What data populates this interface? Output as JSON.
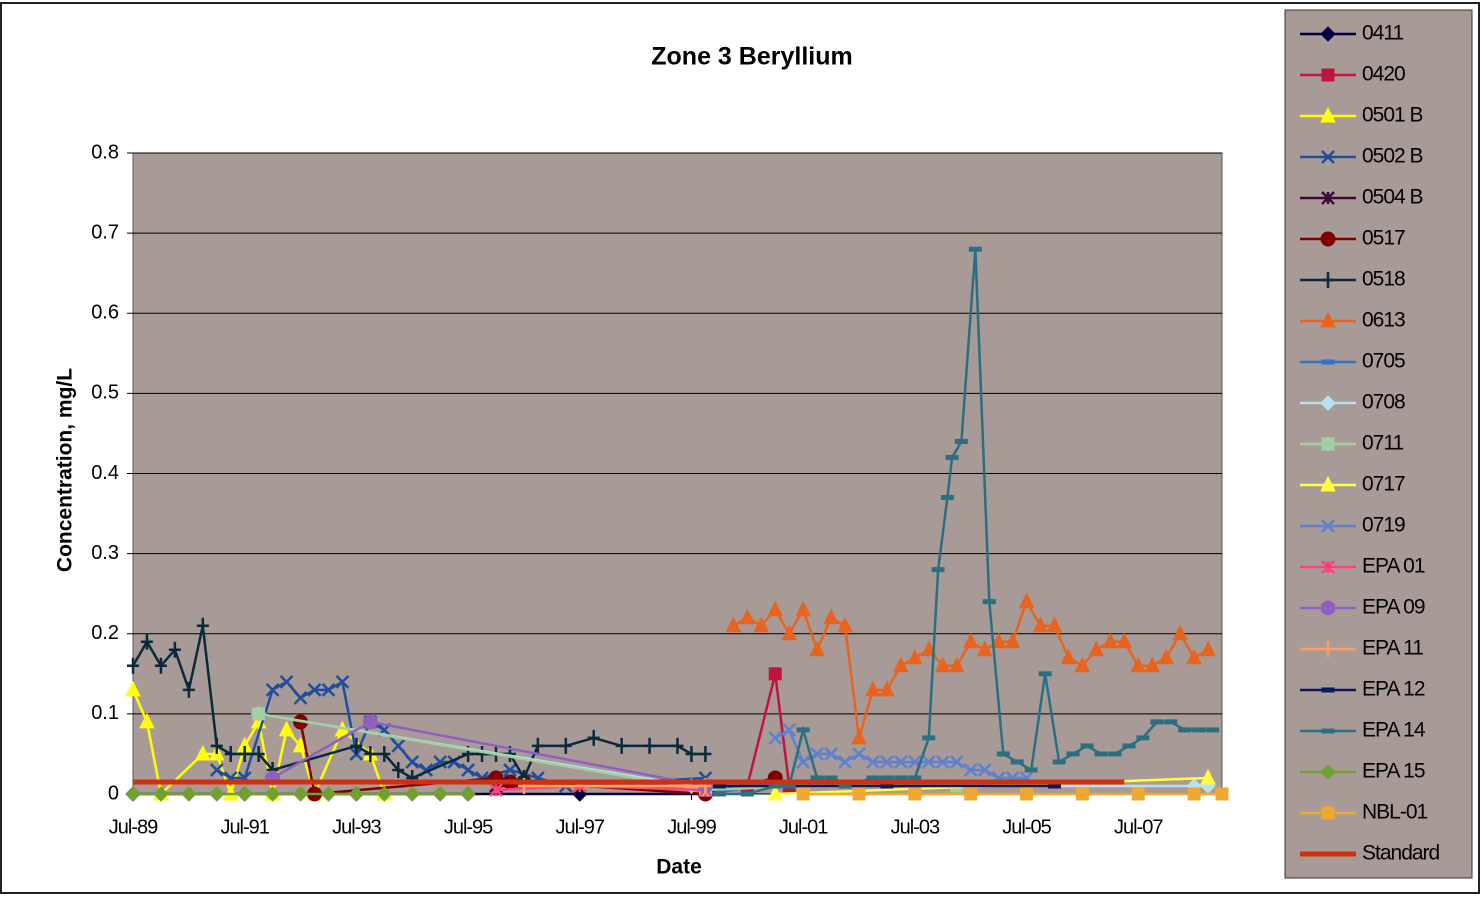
{
  "chart_data": {
    "type": "line",
    "title": "Zone 3 Beryllium",
    "x_label": "Date",
    "y_label": "Concentration, mg/L",
    "xlim": [
      "1989-07",
      "2009-01"
    ],
    "xticks": [
      {
        "value": "1989-07",
        "label": "Jul-89"
      },
      {
        "value": "1991-07",
        "label": "Jul-91"
      },
      {
        "value": "1993-07",
        "label": "Jul-93"
      },
      {
        "value": "1995-07",
        "label": "Jul-95"
      },
      {
        "value": "1997-07",
        "label": "Jul-97"
      },
      {
        "value": "1999-07",
        "label": "Jul-99"
      },
      {
        "value": "2001-07",
        "label": "Jul-01"
      },
      {
        "value": "2003-07",
        "label": "Jul-03"
      },
      {
        "value": "2005-07",
        "label": "Jul-05"
      },
      {
        "value": "2007-07",
        "label": "Jul-07"
      }
    ],
    "ylim": [
      0,
      0.8
    ],
    "yticks": [
      0,
      0.1,
      0.2,
      0.3,
      0.4,
      0.5,
      0.6,
      0.7,
      0.8
    ],
    "grid": true,
    "series": [
      {
        "name": "0411",
        "color": "#000040",
        "marker": "diamond",
        "x": [
          "1989-07",
          "1991-07",
          "1993-07",
          "1995-07",
          "1997-07",
          "1999-10"
        ],
        "values": [
          0,
          0,
          0,
          0,
          0,
          0
        ]
      },
      {
        "name": "0420",
        "color": "#c0143c",
        "marker": "square",
        "x": [
          "2000-07",
          "2001-01",
          "2001-04"
        ],
        "values": [
          0.01,
          0.15,
          0.01
        ]
      },
      {
        "name": "0501 B",
        "color": "#ffff00",
        "marker": "triangle",
        "x": [
          "1989-07",
          "1989-10",
          "1990-01",
          "1990-10",
          "1991-01",
          "1991-04",
          "1991-07",
          "1991-10",
          "1992-01",
          "1992-04",
          "1992-07",
          "1992-10",
          "1993-04",
          "1993-10",
          "1994-01"
        ],
        "values": [
          0.13,
          0.09,
          0,
          0.05,
          0.05,
          0,
          0.06,
          0.09,
          0,
          0.08,
          0.06,
          0,
          0.08,
          0.05,
          0
        ]
      },
      {
        "name": "0502 B",
        "color": "#1f4e9c",
        "marker": "x",
        "x": [
          "1991-01",
          "1991-04",
          "1991-07",
          "1992-01",
          "1992-04",
          "1992-07",
          "1992-10",
          "1993-01",
          "1993-04",
          "1993-07",
          "1993-10",
          "1994-01",
          "1994-04",
          "1994-07",
          "1994-10",
          "1995-01",
          "1995-04",
          "1995-07",
          "1995-10",
          "1996-04",
          "1996-10",
          "1997-04",
          "1999-10"
        ],
        "values": [
          0.03,
          0.02,
          0.02,
          0.13,
          0.14,
          0.12,
          0.13,
          0.13,
          0.14,
          0.05,
          0.09,
          0.08,
          0.06,
          0.04,
          0.03,
          0.04,
          0.04,
          0.03,
          0.02,
          0.03,
          0.02,
          0.01,
          0.02
        ]
      },
      {
        "name": "0504 B",
        "color": "#3a0a3a",
        "marker": "star",
        "x": [
          "1996-01",
          "1997-07",
          "1999-10"
        ],
        "values": [
          0.01,
          0.01,
          0.01
        ]
      },
      {
        "name": "0517",
        "color": "#800000",
        "marker": "circle",
        "x": [
          "1992-07",
          "1992-10",
          "1996-01",
          "1996-04",
          "1996-07",
          "1999-10",
          "2001-01"
        ],
        "values": [
          0.09,
          0,
          0.02,
          0.015,
          0.015,
          0,
          0.02
        ]
      },
      {
        "name": "0518",
        "color": "#0a2a3a",
        "marker": "plus",
        "x": [
          "1989-07",
          "1989-10",
          "1990-01",
          "1990-04",
          "1990-07",
          "1990-10",
          "1991-01",
          "1991-04",
          "1991-07",
          "1991-10",
          "1992-01",
          "1993-07",
          "1993-10",
          "1994-01",
          "1994-04",
          "1994-07",
          "1995-07",
          "1995-10",
          "1996-01",
          "1996-04",
          "1996-07",
          "1996-10",
          "1997-04",
          "1997-10",
          "1998-04",
          "1998-10",
          "1999-04",
          "1999-07",
          "1999-10"
        ],
        "values": [
          0.16,
          0.19,
          0.16,
          0.18,
          0.13,
          0.21,
          0.06,
          0.05,
          0.05,
          0.05,
          0.03,
          0.06,
          0.05,
          0.05,
          0.03,
          0.02,
          0.05,
          0.05,
          0.05,
          0.05,
          0.02,
          0.06,
          0.06,
          0.07,
          0.06,
          0.06,
          0.06,
          0.05,
          0.05
        ]
      },
      {
        "name": "0613",
        "color": "#e8641e",
        "marker": "triangle",
        "x": [
          "2000-04",
          "2000-07",
          "2000-10",
          "2001-01",
          "2001-04",
          "2001-07",
          "2001-10",
          "2002-01",
          "2002-04",
          "2002-07",
          "2002-10",
          "2003-01",
          "2003-04",
          "2003-07",
          "2003-10",
          "2004-01",
          "2004-04",
          "2004-07",
          "2004-10",
          "2005-01",
          "2005-04",
          "2005-07",
          "2005-10",
          "2006-01",
          "2006-04",
          "2006-07",
          "2006-10",
          "2007-01",
          "2007-04",
          "2007-07",
          "2007-10",
          "2008-01",
          "2008-04",
          "2008-07",
          "2008-10"
        ],
        "values": [
          0.21,
          0.22,
          0.21,
          0.23,
          0.2,
          0.23,
          0.18,
          0.22,
          0.21,
          0.07,
          0.13,
          0.13,
          0.16,
          0.17,
          0.18,
          0.16,
          0.16,
          0.19,
          0.18,
          0.19,
          0.19,
          0.24,
          0.21,
          0.21,
          0.17,
          0.16,
          0.18,
          0.19,
          0.19,
          0.16,
          0.16,
          0.17,
          0.2,
          0.17,
          0.18
        ]
      },
      {
        "name": "0705",
        "color": "#2e74c8",
        "marker": "dash",
        "x": [
          "1999-10",
          "2000-10",
          "2001-04"
        ],
        "values": [
          0,
          0.01,
          0.01
        ]
      },
      {
        "name": "0708",
        "color": "#b8e0f0",
        "marker": "diamond",
        "x": [
          "1991-10",
          "1999-07",
          "2008-07",
          "2008-10"
        ],
        "values": [
          0.1,
          0.01,
          0.01,
          0.01
        ]
      },
      {
        "name": "0711",
        "color": "#a0d0a0",
        "marker": "square",
        "x": [
          "1991-10",
          "1999-10",
          "2001-07",
          "2004-04"
        ],
        "values": [
          0.1,
          0.005,
          0.01,
          0.01
        ]
      },
      {
        "name": "0717",
        "color": "#ffff40",
        "marker": "triangle",
        "x": [
          "2001-01",
          "2008-10"
        ],
        "values": [
          0,
          0.02
        ]
      },
      {
        "name": "0719",
        "color": "#6080d0",
        "marker": "x",
        "x": [
          "2001-01",
          "2001-04",
          "2001-07",
          "2001-10",
          "2002-01",
          "2002-04",
          "2002-07",
          "2002-10",
          "2003-01",
          "2003-04",
          "2003-07",
          "2003-10",
          "2004-01",
          "2004-04",
          "2004-07",
          "2004-10",
          "2005-01",
          "2005-04",
          "2005-07"
        ],
        "values": [
          0.07,
          0.08,
          0.04,
          0.05,
          0.05,
          0.04,
          0.05,
          0.04,
          0.04,
          0.04,
          0.04,
          0.04,
          0.04,
          0.04,
          0.03,
          0.03,
          0.02,
          0.02,
          0.02
        ]
      },
      {
        "name": "EPA 01",
        "color": "#ff4080",
        "marker": "star",
        "x": [
          "1996-01",
          "1997-07",
          "1999-10"
        ],
        "values": [
          0.005,
          0.01,
          0.005
        ]
      },
      {
        "name": "EPA 09",
        "color": "#9060c0",
        "marker": "circle",
        "x": [
          "1992-01",
          "1993-10",
          "1999-10"
        ],
        "values": [
          0.02,
          0.09,
          0.01
        ]
      },
      {
        "name": "EPA 11",
        "color": "#ffa060",
        "marker": "plus",
        "x": [
          "1996-07",
          "1999-10"
        ],
        "values": [
          0.01,
          0.01
        ]
      },
      {
        "name": "EPA 12",
        "color": "#0a1a60",
        "marker": "dash",
        "x": [
          "2000-01",
          "2003-01",
          "2006-01"
        ],
        "values": [
          0.01,
          0.01,
          0.01
        ]
      },
      {
        "name": "EPA 14",
        "color": "#2a7080",
        "marker": "dash",
        "x": [
          "2000-01",
          "2000-07",
          "2001-01",
          "2001-04",
          "2001-07",
          "2001-10",
          "2002-01",
          "2002-04",
          "2002-10",
          "2003-01",
          "2003-04",
          "2003-07",
          "2003-10",
          "2003-12",
          "2004-02",
          "2004-03",
          "2004-05",
          "2004-08",
          "2004-11",
          "2005-02",
          "2005-05",
          "2005-08",
          "2005-11",
          "2006-02",
          "2006-05",
          "2006-08",
          "2006-11",
          "2007-02",
          "2007-05",
          "2007-08",
          "2007-11",
          "2008-02",
          "2008-05",
          "2008-08",
          "2008-11"
        ],
        "values": [
          0,
          0,
          0.01,
          0.01,
          0.08,
          0.02,
          0.02,
          0.01,
          0.02,
          0.02,
          0.02,
          0.02,
          0.07,
          0.28,
          0.37,
          0.42,
          0.44,
          0.68,
          0.24,
          0.05,
          0.04,
          0.03,
          0.15,
          0.04,
          0.05,
          0.06,
          0.05,
          0.05,
          0.06,
          0.07,
          0.09,
          0.09,
          0.08,
          0.08,
          0.08
        ]
      },
      {
        "name": "EPA 15",
        "color": "#70a030",
        "marker": "diamond",
        "x": [
          "1989-07",
          "1990-01",
          "1990-07",
          "1991-01",
          "1991-07",
          "1992-01",
          "1992-07",
          "1993-01",
          "1993-07",
          "1994-01",
          "1994-07",
          "1995-01",
          "1995-07"
        ],
        "values": [
          0,
          0,
          0,
          0,
          0,
          0,
          0,
          0,
          0,
          0,
          0,
          0,
          0
        ]
      },
      {
        "name": "NBL-01",
        "color": "#f0a830",
        "marker": "square",
        "x": [
          "2001-07",
          "2002-07",
          "2003-07",
          "2004-07",
          "2005-07",
          "2006-07",
          "2007-07",
          "2008-07",
          "2009-01"
        ],
        "values": [
          0,
          0,
          0,
          0,
          0,
          0,
          0,
          0,
          0
        ]
      },
      {
        "name": "Standard",
        "color": "#d03010",
        "marker": "none",
        "x": [
          "1989-07",
          "2007-04"
        ],
        "values": [
          0.015,
          0.015
        ]
      }
    ]
  }
}
